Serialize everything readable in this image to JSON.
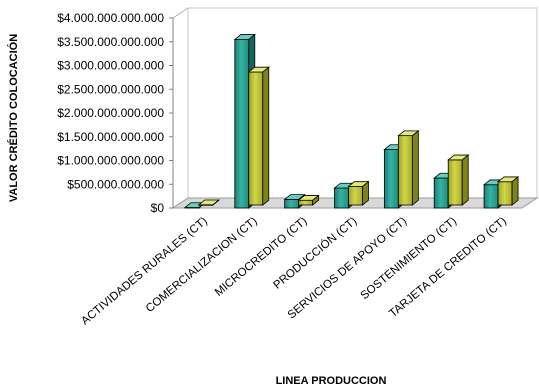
{
  "chart_data": {
    "type": "bar",
    "chart_style": "3d-clustered-column",
    "title": "",
    "xlabel": "LINEA PRODUCCION",
    "ylabel": "VALOR CRÉDITO COLOCACIÓN",
    "ylim": [
      0,
      4000000000000
    ],
    "yticks": [
      "$0",
      "$500.000.000.000",
      "$1.000.000.000.000",
      "$1.500.000.000.000",
      "$2.000.000.000.000",
      "$2.500.000.000.000",
      "$3.000.000.000.000",
      "$3.500.000.000.000",
      "$4.000.000.000.000"
    ],
    "grid": false,
    "legend": "none",
    "categories": [
      "ACTIVIDADES RURALES (CT)",
      "COMERCIALIZACION (CT)",
      "MICROCREDITO (CT)",
      "PRODUCCIÓN (CT)",
      "SERVICIOS DE APOYO (CT)",
      "SOSTENIMIENTO (CT)",
      "TARJETA DE CREDITO (CT)"
    ],
    "series": [
      {
        "values": [
          10000000000,
          3550000000000,
          180000000000,
          420000000000,
          1230000000000,
          630000000000,
          490000000000
        ],
        "color": "#2a9d8f"
      },
      {
        "values": [
          5000000000,
          2800000000000,
          100000000000,
          390000000000,
          1460000000000,
          950000000000,
          490000000000
        ],
        "color": "#b5b935"
      }
    ]
  }
}
